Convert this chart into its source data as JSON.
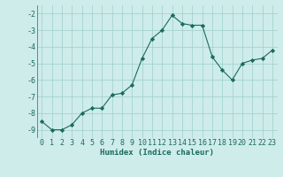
{
  "x": [
    0,
    1,
    2,
    3,
    4,
    5,
    6,
    7,
    8,
    9,
    10,
    11,
    12,
    13,
    14,
    15,
    16,
    17,
    18,
    19,
    20,
    21,
    22,
    23
  ],
  "y": [
    -8.5,
    -9.0,
    -9.0,
    -8.7,
    -8.0,
    -7.7,
    -7.7,
    -6.9,
    -6.8,
    -6.3,
    -4.7,
    -3.5,
    -3.0,
    -2.1,
    -2.6,
    -2.7,
    -2.7,
    -4.6,
    -5.4,
    -6.0,
    -5.0,
    -4.8,
    -4.7,
    -4.2
  ],
  "xlabel": "Humidex (Indice chaleur)",
  "xlim": [
    -0.5,
    23.5
  ],
  "ylim": [
    -9.5,
    -1.5
  ],
  "yticks": [
    -9,
    -8,
    -7,
    -6,
    -5,
    -4,
    -3,
    -2
  ],
  "xticks": [
    0,
    1,
    2,
    3,
    4,
    5,
    6,
    7,
    8,
    9,
    10,
    11,
    12,
    13,
    14,
    15,
    16,
    17,
    18,
    19,
    20,
    21,
    22,
    23
  ],
  "line_color": "#1a6b5a",
  "marker": "D",
  "marker_size": 2.2,
  "bg_color": "#ceecea",
  "grid_color": "#9ececa",
  "tick_color": "#1a6b5a",
  "label_fontsize": 6.0,
  "xlabel_fontsize": 6.5
}
